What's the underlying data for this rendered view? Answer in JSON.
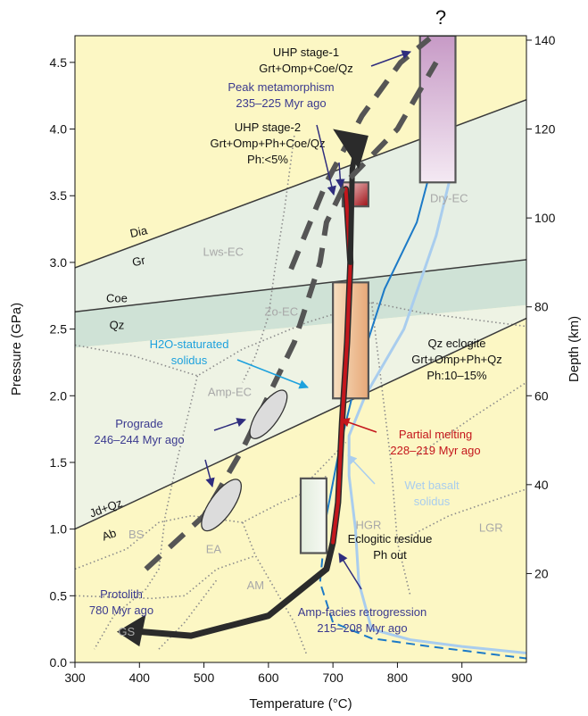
{
  "chart_data": {
    "type": "line",
    "xlabel": "Temperature (°C)",
    "ylabel": "Pressure (GPa)",
    "y2label": "Depth (km)",
    "xlim": [
      300,
      1000
    ],
    "ylim": [
      0,
      4.7
    ],
    "y2lim": [
      0,
      141
    ],
    "x_ticks": [
      300,
      400,
      500,
      600,
      700,
      800,
      900
    ],
    "y_ticks": [
      0.0,
      0.5,
      1.0,
      1.5,
      2.0,
      2.5,
      3.0,
      3.5,
      4.0,
      4.5
    ],
    "y_tick_labels": [
      "0.0",
      "0.5",
      "1.0",
      "1.5",
      "2.0",
      "2.5",
      "3.0",
      "3.5",
      "4.0",
      "4.5"
    ],
    "y2_ticks": [
      20,
      40,
      60,
      80,
      100,
      120,
      140
    ],
    "y2_tick_labels": [
      "20",
      "40",
      "60",
      "80",
      "100",
      "120",
      "140"
    ],
    "colors": {
      "background": "#fcf7c4",
      "dia_band": "#e6efe4",
      "coe_band": "#cfe2d6",
      "blue_solidus": "#1c7ac7",
      "wet_solidus": "#a9cdee",
      "melt_path": "#c4161c",
      "dark_path": "#2b2b2b",
      "violet_text": "#3b3a8f",
      "red_text": "#c4161c",
      "cyan_text": "#1da1dd",
      "gray_text": "#a8a8a8"
    },
    "reaction_lines": [
      {
        "id": "dia-gr",
        "points": [
          [
            300,
            2.96
          ],
          [
            1000,
            4.22
          ]
        ],
        "labels": [
          "Dia",
          "Gr"
        ]
      },
      {
        "id": "coe-qz",
        "points": [
          [
            300,
            2.63
          ],
          [
            1000,
            3.02
          ]
        ],
        "labels": [
          "Coe",
          "Qz"
        ]
      },
      {
        "id": "jd-ab",
        "points": [
          [
            300,
            1.0
          ],
          [
            1000,
            2.58
          ]
        ],
        "labels": [
          "Jd+Qz",
          "Ab"
        ]
      }
    ],
    "solidus_curves": [
      {
        "id": "h2o-saturated",
        "points": [
          [
            860,
            3.85
          ],
          [
            830,
            3.3
          ],
          [
            780,
            2.8
          ],
          [
            740,
            2.2
          ],
          [
            710,
            1.6
          ],
          [
            690,
            1.1
          ],
          [
            680,
            0.6
          ],
          [
            700,
            0.3
          ],
          [
            760,
            0.18
          ],
          [
            850,
            0.12
          ],
          [
            1000,
            0.03
          ]
        ]
      },
      {
        "id": "wet-basalt",
        "points": [
          [
            885,
            3.7
          ],
          [
            860,
            3.2
          ],
          [
            810,
            2.5
          ],
          [
            750,
            2.0
          ],
          [
            725,
            1.7
          ],
          [
            725,
            1.4
          ],
          [
            735,
            1.0
          ],
          [
            740,
            0.6
          ],
          [
            760,
            0.25
          ],
          [
            820,
            0.17
          ],
          [
            900,
            0.12
          ],
          [
            1000,
            0.07
          ]
        ]
      }
    ],
    "pt_paths": [
      {
        "id": "peak-path",
        "style": "solid-dark-red",
        "points": [
          [
            720,
            3.55
          ],
          [
            727,
            3.0
          ],
          [
            722,
            2.4
          ],
          [
            714,
            1.8
          ],
          [
            708,
            1.2
          ],
          [
            700,
            0.9
          ],
          [
            690,
            0.7
          ],
          [
            600,
            0.35
          ],
          [
            480,
            0.2
          ],
          [
            380,
            0.24
          ]
        ]
      },
      {
        "id": "uhp-arrow",
        "style": "solid-dark",
        "points": [
          [
            727,
            3.0
          ],
          [
            730,
            3.7
          ],
          [
            738,
            3.9
          ]
        ]
      },
      {
        "id": "prograde-path",
        "style": "dashed",
        "points": [
          [
            410,
            0.7
          ],
          [
            500,
            1.1
          ],
          [
            560,
            1.6
          ],
          [
            640,
            2.4
          ],
          [
            680,
            3.0
          ],
          [
            690,
            3.3
          ],
          [
            720,
            3.6
          ],
          [
            800,
            4.0
          ],
          [
            860,
            4.5
          ]
        ]
      },
      {
        "id": "uhp1-path",
        "style": "dashed",
        "points": [
          [
            635,
            2.95
          ],
          [
            690,
            3.6
          ],
          [
            745,
            4.1
          ],
          [
            805,
            4.5
          ],
          [
            850,
            4.68
          ]
        ]
      }
    ],
    "boxes": [
      {
        "id": "uhp-stage-1-box",
        "xmin": 835,
        "xmax": 890,
        "ymin": 3.6,
        "ymax": 4.7
      },
      {
        "id": "uhp-stage-2-box",
        "xmin": 715,
        "xmax": 755,
        "ymin": 3.42,
        "ymax": 3.6
      },
      {
        "id": "qz-eclogite-box",
        "xmin": 700,
        "xmax": 755,
        "ymin": 1.98,
        "ymax": 2.85
      },
      {
        "id": "eclogitic-residue-box",
        "xmin": 650,
        "xmax": 690,
        "ymin": 0.82,
        "ymax": 1.38
      }
    ],
    "ellipses": [
      {
        "id": "prograde-ellipse-1",
        "cx": 600,
        "cy": 1.86,
        "rx": 12,
        "ry": 32
      },
      {
        "id": "prograde-ellipse-2",
        "cx": 527,
        "cy": 1.18,
        "rx": 13,
        "ry": 34
      }
    ],
    "field_labels": [
      "Lws-EC",
      "Zo-EC",
      "Amp-EC",
      "Dry-EC",
      "HGR",
      "LGR",
      "BS",
      "EA",
      "AM",
      "GS"
    ],
    "annotations": {
      "uhp1": {
        "lines": [
          "UHP stage-1",
          "Grt+Omp+Coe/Qz"
        ]
      },
      "peak": {
        "lines": [
          "Peak metamorphism",
          "235–225 Myr ago"
        ]
      },
      "uhp2": {
        "lines": [
          "UHP stage-2",
          "Grt+Omp+Ph+Coe/Qz",
          "Ph:<5%"
        ]
      },
      "h2o": {
        "lines": [
          "H2O-staturated",
          "solidus"
        ]
      },
      "qz_eclogite": {
        "lines": [
          "Qz eclogite",
          "Grt+Omp+Ph+Qz",
          "Ph:10–15%"
        ]
      },
      "prograde": {
        "lines": [
          "Prograde",
          "246–244 Myr ago"
        ]
      },
      "partial_melting": {
        "lines": [
          "Partial melting",
          "228–219 Myr ago"
        ]
      },
      "wet_basalt": {
        "lines": [
          "Wet basalt",
          "solidus"
        ]
      },
      "eclogitic_residue": {
        "lines": [
          "Eclogitic residue",
          "Ph out"
        ]
      },
      "protolith": {
        "lines": [
          "Protolith",
          "780 Myr ago"
        ]
      },
      "amp_retro": {
        "lines": [
          "Amp-facies retrogression",
          "215–208 Myr ago"
        ]
      },
      "question": "?"
    }
  }
}
